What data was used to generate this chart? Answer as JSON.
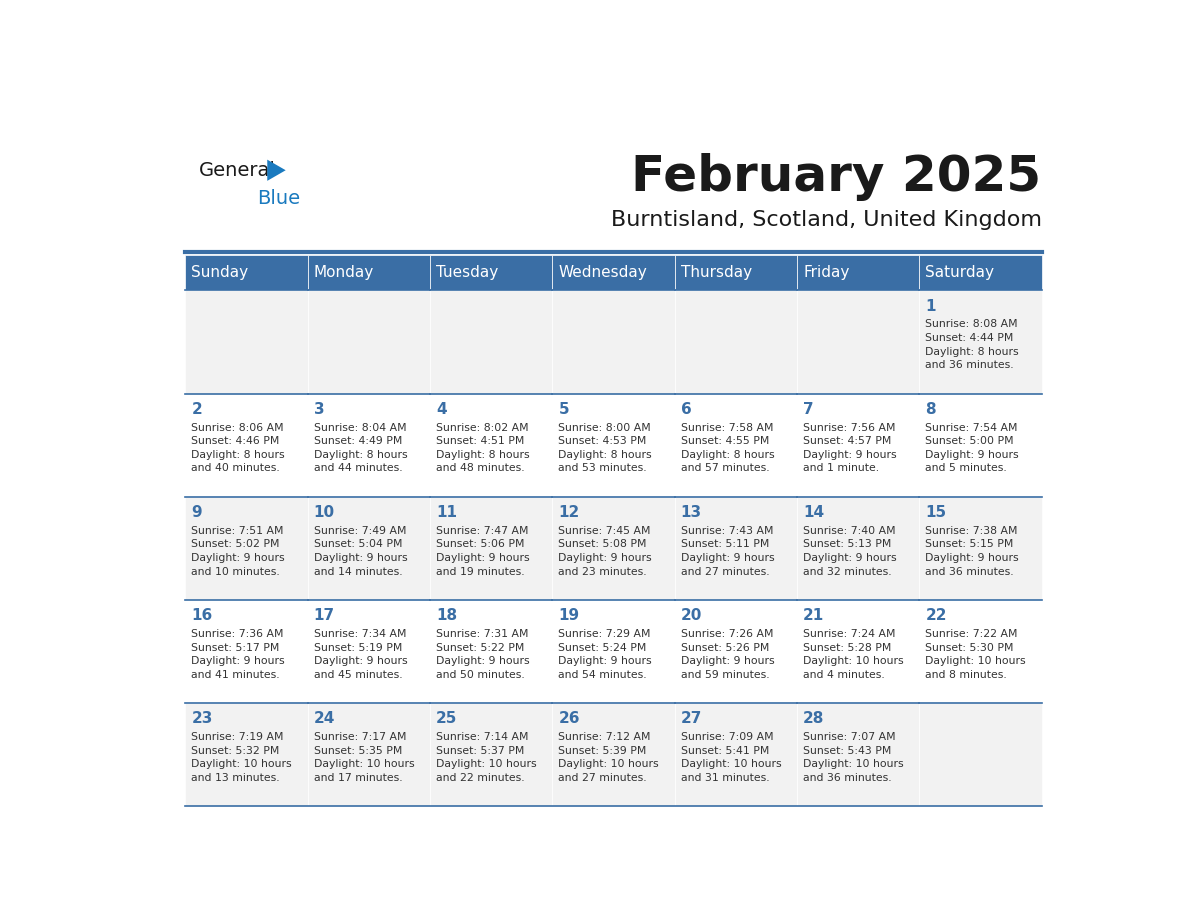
{
  "title": "February 2025",
  "subtitle": "Burntisland, Scotland, United Kingdom",
  "header_bg": "#3a6ea5",
  "header_text_color": "#ffffff",
  "cell_bg_odd": "#f2f2f2",
  "cell_bg_even": "#ffffff",
  "day_number_color": "#3a6ea5",
  "info_text_color": "#333333",
  "border_color": "#3a6ea5",
  "days_of_week": [
    "Sunday",
    "Monday",
    "Tuesday",
    "Wednesday",
    "Thursday",
    "Friday",
    "Saturday"
  ],
  "weeks": [
    [
      {
        "day": null,
        "info": null
      },
      {
        "day": null,
        "info": null
      },
      {
        "day": null,
        "info": null
      },
      {
        "day": null,
        "info": null
      },
      {
        "day": null,
        "info": null
      },
      {
        "day": null,
        "info": null
      },
      {
        "day": 1,
        "info": "Sunrise: 8:08 AM\nSunset: 4:44 PM\nDaylight: 8 hours\nand 36 minutes."
      }
    ],
    [
      {
        "day": 2,
        "info": "Sunrise: 8:06 AM\nSunset: 4:46 PM\nDaylight: 8 hours\nand 40 minutes."
      },
      {
        "day": 3,
        "info": "Sunrise: 8:04 AM\nSunset: 4:49 PM\nDaylight: 8 hours\nand 44 minutes."
      },
      {
        "day": 4,
        "info": "Sunrise: 8:02 AM\nSunset: 4:51 PM\nDaylight: 8 hours\nand 48 minutes."
      },
      {
        "day": 5,
        "info": "Sunrise: 8:00 AM\nSunset: 4:53 PM\nDaylight: 8 hours\nand 53 minutes."
      },
      {
        "day": 6,
        "info": "Sunrise: 7:58 AM\nSunset: 4:55 PM\nDaylight: 8 hours\nand 57 minutes."
      },
      {
        "day": 7,
        "info": "Sunrise: 7:56 AM\nSunset: 4:57 PM\nDaylight: 9 hours\nand 1 minute."
      },
      {
        "day": 8,
        "info": "Sunrise: 7:54 AM\nSunset: 5:00 PM\nDaylight: 9 hours\nand 5 minutes."
      }
    ],
    [
      {
        "day": 9,
        "info": "Sunrise: 7:51 AM\nSunset: 5:02 PM\nDaylight: 9 hours\nand 10 minutes."
      },
      {
        "day": 10,
        "info": "Sunrise: 7:49 AM\nSunset: 5:04 PM\nDaylight: 9 hours\nand 14 minutes."
      },
      {
        "day": 11,
        "info": "Sunrise: 7:47 AM\nSunset: 5:06 PM\nDaylight: 9 hours\nand 19 minutes."
      },
      {
        "day": 12,
        "info": "Sunrise: 7:45 AM\nSunset: 5:08 PM\nDaylight: 9 hours\nand 23 minutes."
      },
      {
        "day": 13,
        "info": "Sunrise: 7:43 AM\nSunset: 5:11 PM\nDaylight: 9 hours\nand 27 minutes."
      },
      {
        "day": 14,
        "info": "Sunrise: 7:40 AM\nSunset: 5:13 PM\nDaylight: 9 hours\nand 32 minutes."
      },
      {
        "day": 15,
        "info": "Sunrise: 7:38 AM\nSunset: 5:15 PM\nDaylight: 9 hours\nand 36 minutes."
      }
    ],
    [
      {
        "day": 16,
        "info": "Sunrise: 7:36 AM\nSunset: 5:17 PM\nDaylight: 9 hours\nand 41 minutes."
      },
      {
        "day": 17,
        "info": "Sunrise: 7:34 AM\nSunset: 5:19 PM\nDaylight: 9 hours\nand 45 minutes."
      },
      {
        "day": 18,
        "info": "Sunrise: 7:31 AM\nSunset: 5:22 PM\nDaylight: 9 hours\nand 50 minutes."
      },
      {
        "day": 19,
        "info": "Sunrise: 7:29 AM\nSunset: 5:24 PM\nDaylight: 9 hours\nand 54 minutes."
      },
      {
        "day": 20,
        "info": "Sunrise: 7:26 AM\nSunset: 5:26 PM\nDaylight: 9 hours\nand 59 minutes."
      },
      {
        "day": 21,
        "info": "Sunrise: 7:24 AM\nSunset: 5:28 PM\nDaylight: 10 hours\nand 4 minutes."
      },
      {
        "day": 22,
        "info": "Sunrise: 7:22 AM\nSunset: 5:30 PM\nDaylight: 10 hours\nand 8 minutes."
      }
    ],
    [
      {
        "day": 23,
        "info": "Sunrise: 7:19 AM\nSunset: 5:32 PM\nDaylight: 10 hours\nand 13 minutes."
      },
      {
        "day": 24,
        "info": "Sunrise: 7:17 AM\nSunset: 5:35 PM\nDaylight: 10 hours\nand 17 minutes."
      },
      {
        "day": 25,
        "info": "Sunrise: 7:14 AM\nSunset: 5:37 PM\nDaylight: 10 hours\nand 22 minutes."
      },
      {
        "day": 26,
        "info": "Sunrise: 7:12 AM\nSunset: 5:39 PM\nDaylight: 10 hours\nand 27 minutes."
      },
      {
        "day": 27,
        "info": "Sunrise: 7:09 AM\nSunset: 5:41 PM\nDaylight: 10 hours\nand 31 minutes."
      },
      {
        "day": 28,
        "info": "Sunrise: 7:07 AM\nSunset: 5:43 PM\nDaylight: 10 hours\nand 36 minutes."
      },
      {
        "day": null,
        "info": null
      }
    ]
  ],
  "logo_text_general": "General",
  "logo_text_blue": "Blue",
  "logo_color_general": "#1a1a1a",
  "logo_color_blue": "#1a7abf",
  "logo_triangle_color": "#1a7abf"
}
